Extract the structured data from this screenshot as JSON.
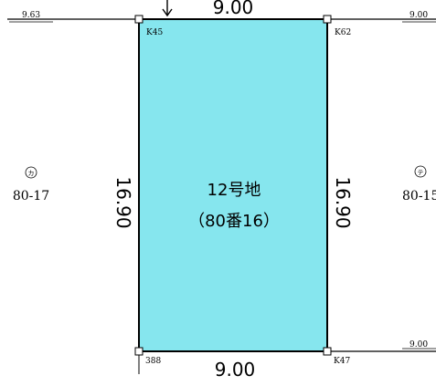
{
  "plot": {
    "name": "12号地",
    "number": "（80番16）",
    "fill_color": "#86e6ee",
    "outline_color": "#000000"
  },
  "dimensions": {
    "top": "9.00",
    "bottom": "9.00",
    "left": "16.90",
    "right": "16.90"
  },
  "corner_markers": {
    "top_left": "K45",
    "top_right": "K62",
    "bottom_left": "388",
    "bottom_right": "K47"
  },
  "edge_labels": {
    "top_left_road": "9.63",
    "top_right_road": "9.00",
    "bottom_right_road": "9.00"
  },
  "neighbors": {
    "left_symbol": "カ",
    "left_number": "80-17",
    "right_symbol": "テ",
    "right_number": "80-15"
  }
}
